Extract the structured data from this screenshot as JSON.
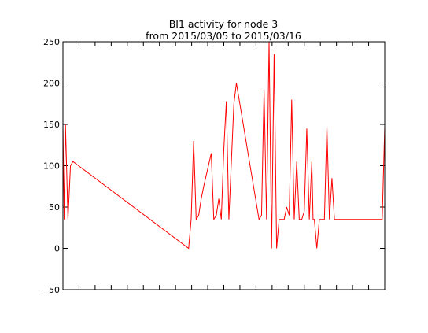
{
  "chart_data": {
    "type": "line",
    "title": "BI1 activity for node 3",
    "subtitle": "from 2015/03/05 to 2015/03/16",
    "xlabel": "",
    "ylabel": "",
    "ylim": [
      -50,
      250
    ],
    "y_ticks": [
      -50,
      0,
      50,
      100,
      150,
      200,
      250
    ],
    "x_tick_count": 20,
    "grid": false,
    "series_color": "#ff0000",
    "series": [
      {
        "x": [
          0,
          0.5,
          1,
          2,
          3,
          4,
          50,
          51,
          52,
          53,
          54,
          55,
          56,
          59,
          60,
          61,
          62,
          63,
          64,
          65,
          66,
          68,
          69,
          78,
          79,
          80,
          81,
          82,
          83,
          84,
          85,
          86,
          87,
          88,
          89,
          90,
          91,
          92,
          93,
          94,
          95,
          96,
          97,
          98,
          99,
          99.5,
          100,
          101,
          102,
          103,
          104,
          105,
          106,
          107,
          108,
          109,
          110,
          111,
          112,
          113,
          114,
          115,
          116,
          117,
          118,
          119,
          120,
          121,
          122,
          123,
          124,
          125,
          126,
          127,
          128
        ],
        "y": [
          150,
          35,
          150,
          35,
          100,
          105,
          0,
          35,
          130,
          35,
          40,
          60,
          75,
          115,
          35,
          40,
          60,
          35,
          120,
          178,
          35,
          175,
          200,
          35,
          40,
          192,
          35,
          250,
          0,
          235,
          0,
          35,
          35,
          35,
          50,
          40,
          180,
          35,
          105,
          35,
          35,
          45,
          145,
          35,
          105,
          35,
          35,
          0,
          35,
          35,
          35,
          148,
          35,
          85,
          35,
          35,
          35,
          35,
          35,
          35,
          35,
          35,
          35,
          35,
          35,
          35,
          35,
          35,
          35,
          35,
          35,
          35,
          35,
          35,
          148
        ]
      }
    ]
  }
}
